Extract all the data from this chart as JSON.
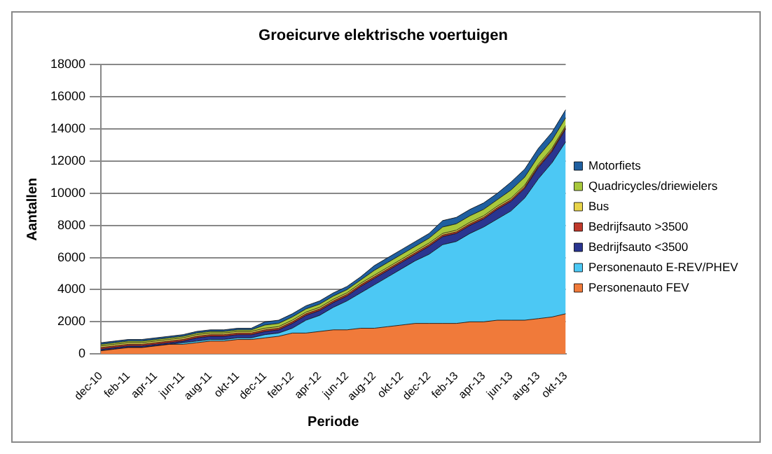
{
  "chart_data": {
    "type": "area",
    "stacked": true,
    "title": "Groeicurve elektrische voertuigen",
    "xlabel": "Periode",
    "ylabel": "Aantallen",
    "categories": [
      "dec-10",
      null,
      "feb-11",
      null,
      "apr-11",
      null,
      "jun-11",
      null,
      "aug-11",
      null,
      "okt-11",
      null,
      "dec-11",
      null,
      "feb-12",
      null,
      "apr-12",
      null,
      "jun-12",
      null,
      "aug-12",
      null,
      "okt-12",
      null,
      "dec-12",
      null,
      "feb-13",
      null,
      "apr-13",
      null,
      "jun-13",
      null,
      "aug-13",
      null,
      "okt-13"
    ],
    "ylim": [
      0,
      18000
    ],
    "yticks": [
      0,
      2000,
      4000,
      6000,
      8000,
      10000,
      12000,
      14000,
      16000,
      18000
    ],
    "grid": "y",
    "legend": "right",
    "marker": "none",
    "series": [
      {
        "name": "Personenauto FEV",
        "color": "#f07a3a",
        "values": [
          200,
          300,
          400,
          400,
          500,
          600,
          600,
          700,
          800,
          800,
          900,
          900,
          1000,
          1100,
          1300,
          1300,
          1400,
          1500,
          1500,
          1600,
          1600,
          1700,
          1800,
          1900,
          1900,
          1900,
          1900,
          2000,
          2000,
          2100,
          2100,
          2100,
          2200,
          2300,
          2500
        ]
      },
      {
        "name": "Personenauto E-REV/PHEV",
        "color": "#4cc8f4",
        "values": [
          0,
          0,
          0,
          0,
          0,
          0,
          100,
          100,
          100,
          100,
          100,
          100,
          200,
          200,
          300,
          800,
          1000,
          1400,
          1800,
          2200,
          2700,
          3100,
          3500,
          3900,
          4300,
          4900,
          5100,
          5500,
          5900,
          6300,
          6800,
          7600,
          8700,
          9600,
          10700
        ]
      },
      {
        "name": "Bedrijfsauto <3500",
        "color": "#2a3590",
        "values": [
          100,
          100,
          100,
          100,
          100,
          100,
          100,
          200,
          200,
          200,
          200,
          200,
          200,
          200,
          300,
          300,
          300,
          300,
          300,
          400,
          400,
          400,
          400,
          400,
          500,
          500,
          500,
          500,
          500,
          600,
          600,
          600,
          700,
          700,
          800
        ]
      },
      {
        "name": "Bedrijfsauto >3500",
        "color": "#c0392b",
        "values": [
          100,
          100,
          100,
          100,
          100,
          100,
          100,
          100,
          100,
          100,
          100,
          100,
          100,
          100,
          100,
          100,
          100,
          100,
          100,
          100,
          100,
          100,
          100,
          100,
          100,
          100,
          100,
          100,
          100,
          100,
          100,
          100,
          100,
          100,
          100
        ]
      },
      {
        "name": "Bus",
        "color": "#e8d44a",
        "values": [
          100,
          100,
          100,
          100,
          100,
          100,
          100,
          100,
          100,
          100,
          100,
          100,
          100,
          100,
          100,
          100,
          100,
          100,
          100,
          100,
          100,
          100,
          100,
          100,
          100,
          100,
          100,
          100,
          100,
          100,
          100,
          100,
          100,
          100,
          100
        ]
      },
      {
        "name": "Quadricycles/driewielers",
        "color": "#a8c83c",
        "values": [
          100,
          100,
          100,
          100,
          100,
          100,
          100,
          100,
          100,
          100,
          100,
          100,
          200,
          200,
          200,
          200,
          200,
          200,
          200,
          200,
          300,
          300,
          300,
          300,
          300,
          400,
          400,
          400,
          400,
          400,
          500,
          500,
          500,
          500,
          500
        ]
      },
      {
        "name": "Motorfiets",
        "color": "#1f5fa0",
        "values": [
          100,
          100,
          100,
          100,
          100,
          100,
          100,
          100,
          100,
          100,
          100,
          100,
          200,
          200,
          200,
          200,
          200,
          200,
          200,
          200,
          300,
          300,
          300,
          300,
          300,
          400,
          400,
          400,
          400,
          400,
          500,
          500,
          500,
          500,
          500
        ]
      }
    ]
  }
}
